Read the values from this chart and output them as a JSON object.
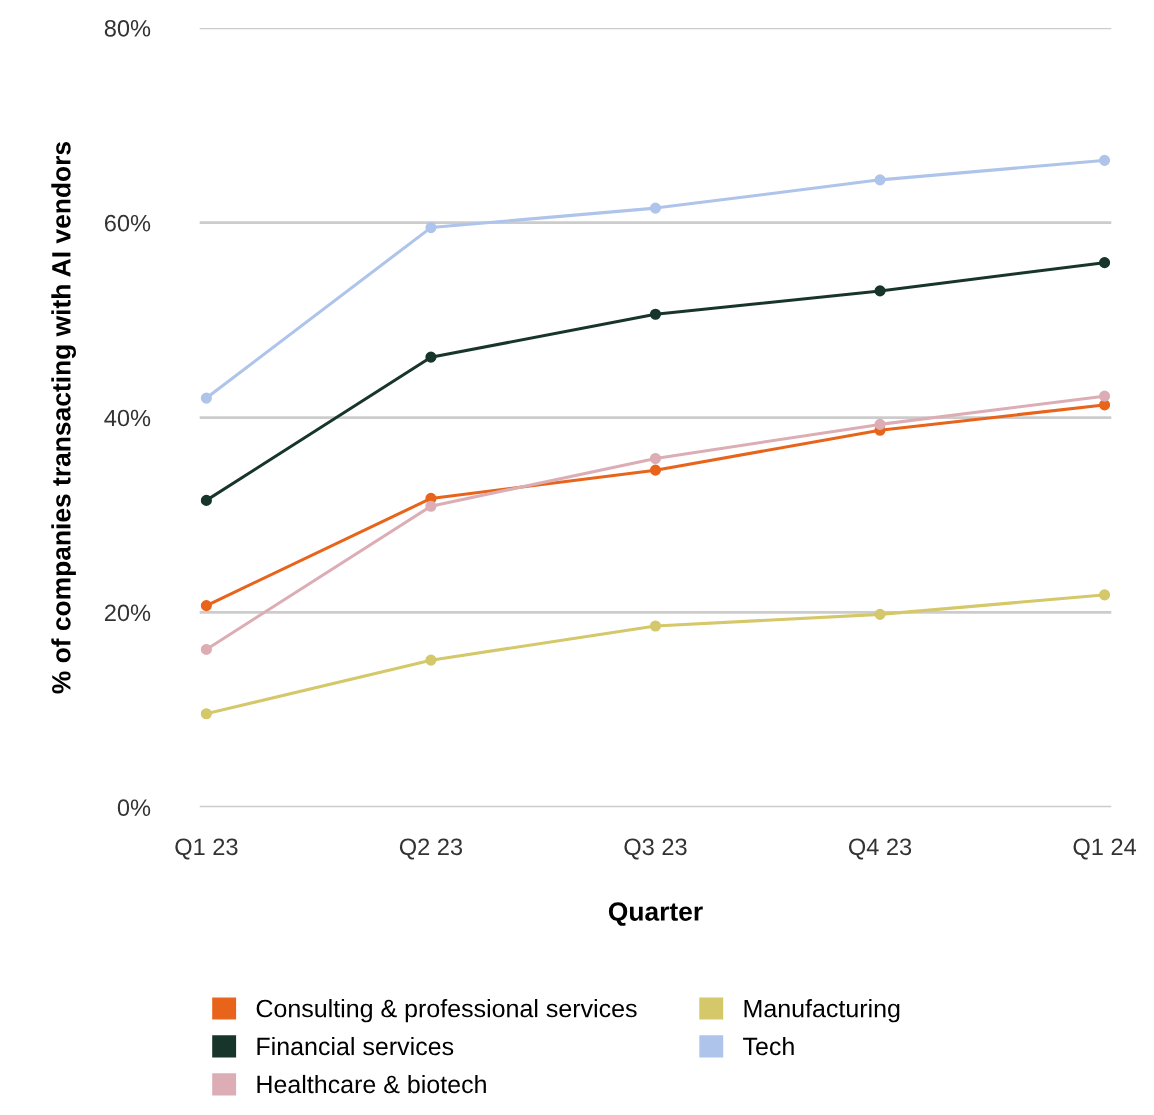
{
  "chart_data": {
    "type": "line",
    "xlabel": "Quarter",
    "ylabel": "% of companies transacting with AI vendors",
    "categories": [
      "Q1 23",
      "Q2 23",
      "Q3 23",
      "Q4 23",
      "Q1 24"
    ],
    "series": [
      {
        "name": "Consulting & professional services",
        "color": "#e8641b",
        "values": [
          20.7,
          31.7,
          34.6,
          38.7,
          41.3
        ]
      },
      {
        "name": "Financial services",
        "color": "#17352b",
        "values": [
          31.5,
          46.2,
          50.6,
          53.0,
          55.9
        ]
      },
      {
        "name": "Healthcare & biotech",
        "color": "#dcadb5",
        "values": [
          16.2,
          30.9,
          35.8,
          39.3,
          42.2
        ]
      },
      {
        "name": "Manufacturing",
        "color": "#d4c86a",
        "values": [
          9.6,
          15.1,
          18.6,
          19.8,
          21.8
        ]
      },
      {
        "name": "Tech",
        "color": "#aec4ea",
        "values": [
          42.0,
          59.5,
          61.5,
          64.4,
          66.4
        ]
      }
    ],
    "ylim": [
      0,
      80
    ],
    "yticks": [
      {
        "value": 0,
        "label": "0%"
      },
      {
        "value": 20,
        "label": "20%"
      },
      {
        "value": 40,
        "label": "40%"
      },
      {
        "value": 60,
        "label": "60%"
      },
      {
        "value": 80,
        "label": "80%"
      }
    ],
    "grid": "y",
    "legend": "bottom",
    "marker": "circle",
    "line_style": "solid"
  }
}
